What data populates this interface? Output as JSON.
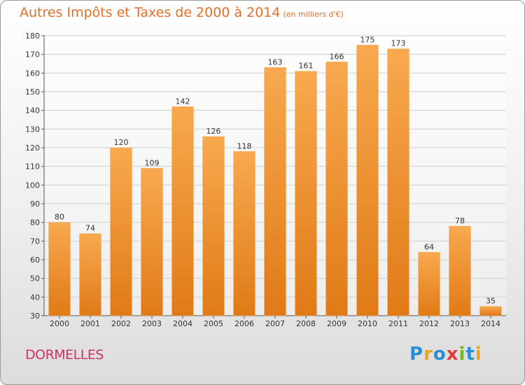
{
  "title": "Autres Impôts et Taxes de 2000 à 2014",
  "unit": "(en milliers d'€)",
  "town": "DORMELLES",
  "logo": {
    "text": "Proxiti",
    "letters": [
      {
        "ch": "P",
        "color": "#2a8fd6"
      },
      {
        "ch": "r",
        "color": "#e8a51e"
      },
      {
        "ch": "o",
        "color": "#2a8fd6"
      },
      {
        "ch": "x",
        "color": "#e23c3c"
      },
      {
        "ch": "i",
        "color": "#7ab51d"
      },
      {
        "ch": "t",
        "color": "#2a8fd6"
      },
      {
        "ch": "i",
        "color": "#e8a51e"
      }
    ]
  },
  "colors": {
    "bar_light": "#f8a94f",
    "bar_dark": "#e07a17",
    "title": "#e0702a",
    "town": "#cc3366"
  },
  "chart_data": {
    "type": "bar",
    "categories": [
      "2000",
      "2001",
      "2002",
      "2003",
      "2004",
      "2005",
      "2006",
      "2007",
      "2008",
      "2009",
      "2010",
      "2011",
      "2012",
      "2013",
      "2014"
    ],
    "values": [
      80,
      74,
      120,
      109,
      142,
      126,
      118,
      163,
      161,
      166,
      175,
      173,
      64,
      78,
      35
    ],
    "ylim": [
      30,
      180
    ],
    "yticks": [
      30,
      40,
      50,
      60,
      70,
      80,
      90,
      100,
      110,
      120,
      130,
      140,
      150,
      160,
      170,
      180
    ],
    "grid": true
  }
}
